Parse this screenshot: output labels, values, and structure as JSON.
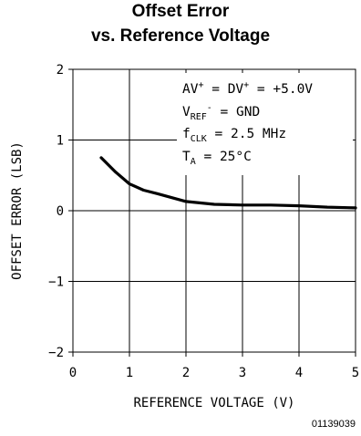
{
  "chart_data": {
    "type": "line",
    "title": "Offset Error",
    "subtitle": "vs. Reference Voltage",
    "xlabel": "REFERENCE VOLTAGE (V)",
    "ylabel": "OFFSET ERROR (LSB)",
    "xlim": [
      0,
      5
    ],
    "ylim": [
      -2,
      2
    ],
    "x_ticks": [
      0,
      1,
      2,
      3,
      4,
      5
    ],
    "y_ticks": [
      -2,
      -1,
      0,
      1,
      2
    ],
    "grid": true,
    "series": [
      {
        "x": [
          0.5,
          0.75,
          1.0,
          1.25,
          1.5,
          2.0,
          2.5,
          3.0,
          3.5,
          4.0,
          4.5,
          5.0
        ],
        "y": [
          0.75,
          0.55,
          0.38,
          0.29,
          0.24,
          0.13,
          0.09,
          0.08,
          0.08,
          0.07,
          0.05,
          0.04
        ]
      }
    ],
    "conditions": [
      "AV+ = DV+ = +5.0V",
      "VREF- = GND",
      "fCLK = 2.5 MHz",
      "TA = 25°C"
    ]
  },
  "figure_id": "01139039"
}
